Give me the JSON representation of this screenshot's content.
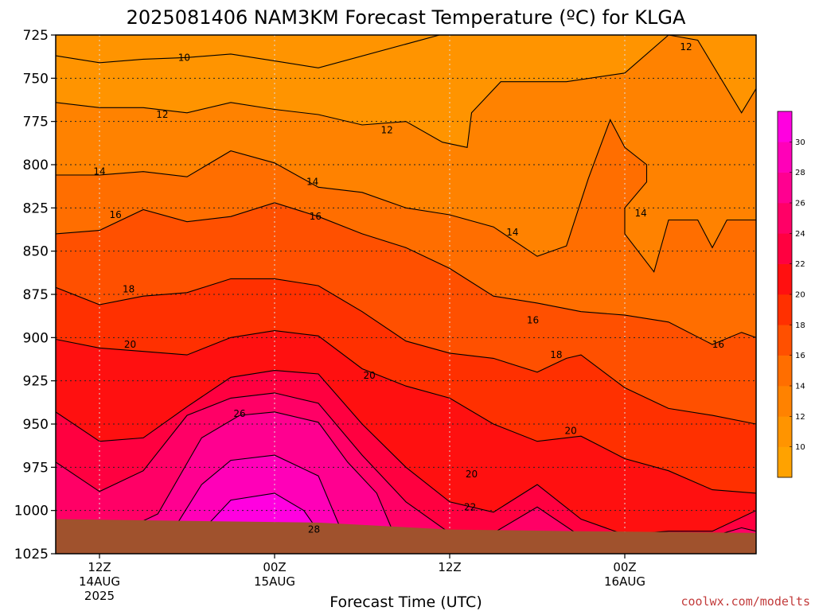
{
  "title": "2025081406 NAM3KM Forecast Temperature (ºC) for KLGA",
  "credit": "coolwx.com/modelts",
  "chart_data": {
    "type": "heatmap",
    "model": "NAM3KM",
    "run": "2025081406",
    "station": "KLGA",
    "variable": "Temperature (ºC)",
    "xlabel": "Forecast Time (UTC)",
    "ylabel": "",
    "y_axis": {
      "scale": "pressure, increasing downward",
      "range": [
        1025,
        725
      ],
      "ticks": [
        725,
        750,
        775,
        800,
        825,
        850,
        875,
        900,
        925,
        950,
        975,
        1000,
        1025
      ]
    },
    "x_axis": {
      "range_hours": [
        9,
        57
      ],
      "ticks": [
        {
          "hour": 12,
          "line1": "12Z",
          "line2": "14AUG",
          "line3": "2025"
        },
        {
          "hour": 24,
          "line1": "00Z",
          "line2": "15AUG",
          "line3": ""
        },
        {
          "hour": 36,
          "line1": "12Z",
          "line2": "",
          "line3": ""
        },
        {
          "hour": 48,
          "line1": "00Z",
          "line2": "16AUG",
          "line3": ""
        },
        {
          "hour": 60,
          "line1": "12Z",
          "line2": "",
          "line3": ""
        }
      ]
    },
    "grid": true,
    "colorbar": {
      "position": "right",
      "levels": [
        8,
        10,
        12,
        14,
        16,
        18,
        20,
        22,
        24,
        26,
        28,
        30,
        32
      ],
      "labels": [
        "10",
        "12",
        "14",
        "16",
        "18",
        "20",
        "22",
        "24",
        "26",
        "28",
        "30"
      ],
      "colors": [
        "#ffa200",
        "#ff9400",
        "#ff8200",
        "#ff6e00",
        "#ff5000",
        "#ff3000",
        "#ff1010",
        "#ff0040",
        "#ff0066",
        "#ff0090",
        "#ff00b8",
        "#ff00e0"
      ]
    },
    "contour_labels": [
      {
        "text": "10",
        "hour": 17.8,
        "p": 738
      },
      {
        "text": "12",
        "hour": 16.3,
        "p": 771
      },
      {
        "text": "12",
        "hour": 31.7,
        "p": 780
      },
      {
        "text": "12",
        "hour": 52.2,
        "p": 732
      },
      {
        "text": "14",
        "hour": 12.0,
        "p": 804
      },
      {
        "text": "14",
        "hour": 26.6,
        "p": 810
      },
      {
        "text": "14",
        "hour": 40.3,
        "p": 839
      },
      {
        "text": "14",
        "hour": 49.1,
        "p": 828
      },
      {
        "text": "14",
        "hour": 57.7,
        "p": 845
      },
      {
        "text": "16",
        "hour": 13.1,
        "p": 829
      },
      {
        "text": "16",
        "hour": 26.8,
        "p": 830
      },
      {
        "text": "16",
        "hour": 41.7,
        "p": 890
      },
      {
        "text": "16",
        "hour": 54.4,
        "p": 904
      },
      {
        "text": "18",
        "hour": 14.0,
        "p": 872
      },
      {
        "text": "18",
        "hour": 43.3,
        "p": 910
      },
      {
        "text": "20",
        "hour": 14.1,
        "p": 904
      },
      {
        "text": "20",
        "hour": 30.5,
        "p": 922
      },
      {
        "text": "20",
        "hour": 44.3,
        "p": 954
      },
      {
        "text": "20",
        "hour": 37.5,
        "p": 979
      },
      {
        "text": "22",
        "hour": 37.4,
        "p": 998
      },
      {
        "text": "26",
        "hour": 21.6,
        "p": 944
      },
      {
        "text": "28",
        "hour": 26.7,
        "p": 1011
      }
    ],
    "isotherm_profiles": [
      {
        "level": 10,
        "points": [
          [
            9,
            737
          ],
          [
            12,
            741
          ],
          [
            15,
            739
          ],
          [
            18,
            738
          ],
          [
            21,
            736
          ],
          [
            24,
            740
          ],
          [
            27,
            744
          ],
          [
            35.3,
            725
          ]
        ]
      },
      {
        "level": 12,
        "points": [
          [
            9,
            764
          ],
          [
            12,
            767
          ],
          [
            15,
            767
          ],
          [
            18,
            770
          ],
          [
            21,
            764
          ],
          [
            24,
            768
          ],
          [
            27,
            771
          ],
          [
            30,
            777
          ],
          [
            33,
            775
          ],
          [
            35.5,
            787
          ],
          [
            37.2,
            790
          ],
          [
            37.5,
            770
          ],
          [
            39.5,
            752
          ],
          [
            44,
            752
          ],
          [
            48,
            747
          ],
          [
            51,
            725
          ],
          [
            53,
            728
          ],
          [
            56,
            770
          ],
          [
            57,
            756
          ]
        ]
      },
      {
        "level": 14,
        "points": [
          [
            9,
            806
          ],
          [
            12,
            806
          ],
          [
            15,
            804
          ],
          [
            18,
            807
          ],
          [
            21,
            792
          ],
          [
            24,
            799
          ],
          [
            27,
            813
          ],
          [
            30,
            816
          ],
          [
            33,
            825
          ],
          [
            36,
            829
          ],
          [
            39,
            836
          ],
          [
            42,
            853
          ],
          [
            44,
            847
          ],
          [
            45.5,
            808
          ],
          [
            47,
            774
          ],
          [
            48,
            790
          ],
          [
            49.5,
            800
          ],
          [
            49.5,
            810
          ],
          [
            48,
            825
          ],
          [
            48,
            840
          ],
          [
            50,
            862
          ],
          [
            51,
            832
          ],
          [
            53,
            832
          ],
          [
            54,
            848
          ],
          [
            55,
            832
          ],
          [
            57,
            832
          ]
        ]
      },
      {
        "level": 16,
        "points": [
          [
            9,
            840
          ],
          [
            12,
            838
          ],
          [
            15,
            826
          ],
          [
            18,
            833
          ],
          [
            21,
            830
          ],
          [
            24,
            822
          ],
          [
            27,
            830
          ],
          [
            30,
            840
          ],
          [
            33,
            848
          ],
          [
            36,
            860
          ],
          [
            39,
            876
          ],
          [
            42,
            880
          ],
          [
            45,
            885
          ],
          [
            48,
            887
          ],
          [
            51,
            891
          ],
          [
            54,
            904
          ],
          [
            56,
            897
          ],
          [
            57,
            900
          ]
        ]
      },
      {
        "level": 18,
        "points": [
          [
            9,
            871
          ],
          [
            12,
            881
          ],
          [
            15,
            876
          ],
          [
            18,
            874
          ],
          [
            21,
            866
          ],
          [
            24,
            866
          ],
          [
            27,
            870
          ],
          [
            30,
            885
          ],
          [
            33,
            902
          ],
          [
            36,
            909
          ],
          [
            39,
            912
          ],
          [
            42,
            920
          ],
          [
            44,
            912
          ],
          [
            45,
            910
          ],
          [
            48,
            929
          ],
          [
            51,
            941
          ],
          [
            54,
            945
          ],
          [
            57,
            950
          ]
        ]
      },
      {
        "level": 20,
        "points": [
          [
            9,
            901
          ],
          [
            12,
            906
          ],
          [
            15,
            908
          ],
          [
            18,
            910
          ],
          [
            21,
            900
          ],
          [
            24,
            896
          ],
          [
            27,
            899
          ],
          [
            30,
            918
          ],
          [
            33,
            928
          ],
          [
            36,
            935
          ],
          [
            39,
            950
          ],
          [
            42,
            960
          ],
          [
            45,
            957
          ],
          [
            48,
            970
          ],
          [
            51,
            977
          ],
          [
            54,
            988
          ],
          [
            57,
            990
          ]
        ]
      },
      {
        "level": 22,
        "points": [
          [
            9,
            943
          ],
          [
            12,
            960
          ],
          [
            15,
            958
          ],
          [
            18,
            940
          ],
          [
            21,
            923
          ],
          [
            24,
            919
          ],
          [
            27,
            921
          ],
          [
            30,
            950
          ],
          [
            33,
            975
          ],
          [
            36,
            995
          ],
          [
            39,
            1001
          ],
          [
            42,
            985
          ],
          [
            45,
            1005
          ],
          [
            48,
            1014
          ],
          [
            51,
            1012
          ],
          [
            54,
            1012
          ],
          [
            57,
            1000
          ]
        ]
      },
      {
        "level": 24,
        "points": [
          [
            9,
            972
          ],
          [
            12,
            989
          ],
          [
            15,
            977
          ],
          [
            18,
            945
          ],
          [
            21,
            935
          ],
          [
            24,
            932
          ],
          [
            27,
            938
          ],
          [
            30,
            968
          ],
          [
            33,
            995
          ],
          [
            36,
            1013
          ],
          [
            39,
            1013
          ],
          [
            42,
            998
          ],
          [
            45,
            1015
          ],
          [
            54,
            1015
          ],
          [
            56,
            1010
          ],
          [
            57,
            1012
          ]
        ]
      },
      {
        "level": 26,
        "points": [
          [
            14,
            1010
          ],
          [
            16,
            1002
          ],
          [
            19,
            958
          ],
          [
            21.6,
            945
          ],
          [
            24,
            943
          ],
          [
            27,
            949
          ],
          [
            29,
            972
          ],
          [
            31,
            990
          ],
          [
            32,
            1010
          ]
        ]
      },
      {
        "level": 28,
        "points": [
          [
            17,
            1012
          ],
          [
            19,
            985
          ],
          [
            21,
            971
          ],
          [
            24,
            968
          ],
          [
            27,
            980
          ],
          [
            28.5,
            1010
          ]
        ]
      },
      {
        "level": 30,
        "points": [
          [
            19,
            1012
          ],
          [
            21,
            994
          ],
          [
            24,
            990
          ],
          [
            26,
            1000
          ],
          [
            27,
            1012
          ]
        ]
      }
    ],
    "terrain": {
      "color": "#a0522d",
      "top_pressure": [
        [
          9,
          1005
        ],
        [
          18,
          1006
        ],
        [
          27,
          1007
        ],
        [
          36,
          1011
        ],
        [
          45,
          1012
        ],
        [
          57,
          1013
        ]
      ]
    }
  }
}
